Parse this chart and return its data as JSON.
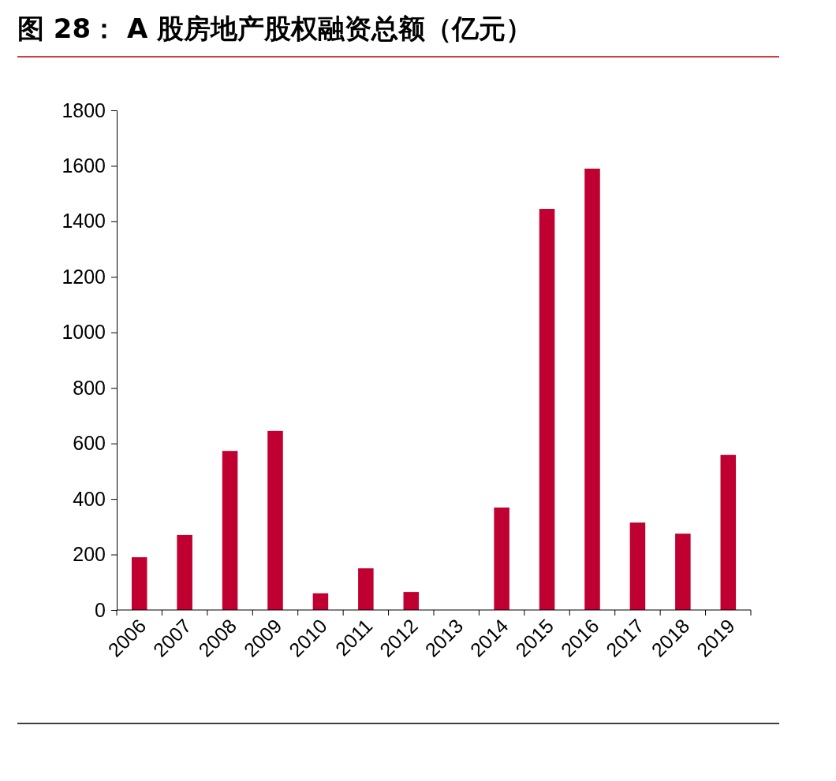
{
  "chart_data": {
    "type": "bar",
    "title": "图 28：  A 股房地产股权融资总额（亿元）",
    "categories": [
      "2006",
      "2007",
      "2008",
      "2009",
      "2010",
      "2011",
      "2012",
      "2013",
      "2014",
      "2015",
      "2016",
      "2017",
      "2018",
      "2019"
    ],
    "values": [
      190,
      270,
      573,
      645,
      60,
      150,
      65,
      0,
      369,
      1445,
      1590,
      315,
      275,
      559
    ],
    "color": "#c00030",
    "ylim": [
      0,
      1800
    ],
    "yticks": [
      0,
      200,
      400,
      600,
      800,
      1000,
      1200,
      1400,
      1600,
      1800
    ],
    "grid": false
  }
}
